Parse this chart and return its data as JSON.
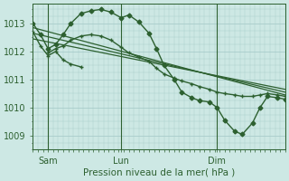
{
  "bg_color": "#cde8e4",
  "grid_color": "#a8ccca",
  "line_color": "#2d6030",
  "axis_color": "#2d6030",
  "text_color": "#2d6030",
  "xlabel": "Pression niveau de la mer( hPa )",
  "ylim": [
    1008.5,
    1013.7
  ],
  "yticks": [
    1009,
    1010,
    1011,
    1012,
    1013
  ],
  "figsize": [
    3.2,
    2.0
  ],
  "dpi": 100,
  "series": [
    {
      "x": [
        0.0,
        0.03,
        0.06,
        0.09,
        0.12,
        0.15,
        0.19,
        0.23,
        0.27,
        0.31,
        0.35,
        0.38,
        0.42,
        0.46,
        0.49,
        0.52,
        0.56,
        0.59,
        0.63,
        0.66,
        0.7,
        0.73,
        0.76,
        0.8,
        0.83,
        0.87,
        0.9,
        0.93,
        0.97,
        1.0
      ],
      "y": [
        1013.0,
        1012.6,
        1012.1,
        1012.25,
        1012.6,
        1013.0,
        1013.35,
        1013.45,
        1013.5,
        1013.4,
        1013.2,
        1013.3,
        1013.05,
        1012.65,
        1012.1,
        1011.5,
        1011.0,
        1010.55,
        1010.35,
        1010.25,
        1010.2,
        1010.0,
        1009.55,
        1009.15,
        1009.05,
        1009.45,
        1010.0,
        1010.4,
        1010.35,
        1010.3
      ],
      "marker": "D",
      "ms": 2.5,
      "lw": 1.0
    },
    {
      "x": [
        0.0,
        1.0
      ],
      "y": [
        1012.85,
        1010.45
      ],
      "marker": null,
      "ms": 0,
      "lw": 0.9
    },
    {
      "x": [
        0.0,
        1.0
      ],
      "y": [
        1012.65,
        1010.55
      ],
      "marker": null,
      "ms": 0,
      "lw": 0.9
    },
    {
      "x": [
        0.0,
        1.0
      ],
      "y": [
        1012.45,
        1010.65
      ],
      "marker": null,
      "ms": 0,
      "lw": 0.9
    },
    {
      "x": [
        0.06,
        0.09,
        0.12,
        0.15,
        0.19,
        0.23,
        0.27,
        0.31,
        0.35,
        0.38,
        0.42,
        0.46,
        0.49,
        0.52,
        0.56,
        0.59,
        0.63,
        0.66,
        0.7,
        0.73,
        0.76,
        0.8,
        0.83,
        0.87,
        0.9,
        0.93,
        0.97,
        1.0
      ],
      "y": [
        1011.95,
        1012.1,
        1012.2,
        1012.4,
        1012.55,
        1012.6,
        1012.55,
        1012.4,
        1012.15,
        1011.95,
        1011.8,
        1011.65,
        1011.4,
        1011.2,
        1011.05,
        1010.95,
        1010.85,
        1010.75,
        1010.65,
        1010.55,
        1010.5,
        1010.45,
        1010.4,
        1010.4,
        1010.45,
        1010.5,
        1010.45,
        1010.4
      ],
      "marker": "+",
      "ms": 3.5,
      "lw": 1.0
    },
    {
      "x": [
        0.0,
        0.03,
        0.06,
        0.09,
        0.12,
        0.15,
        0.19
      ],
      "y": [
        1012.7,
        1012.2,
        1011.85,
        1012.0,
        1011.7,
        1011.55,
        1011.45
      ],
      "marker": "+",
      "ms": 3.5,
      "lw": 1.0
    }
  ],
  "vlines": [
    0.06,
    0.35,
    0.73
  ],
  "xtick_pos": [
    0.06,
    0.35,
    0.73
  ],
  "xtick_labels": [
    "Sam",
    "Lun",
    "Dim"
  ]
}
